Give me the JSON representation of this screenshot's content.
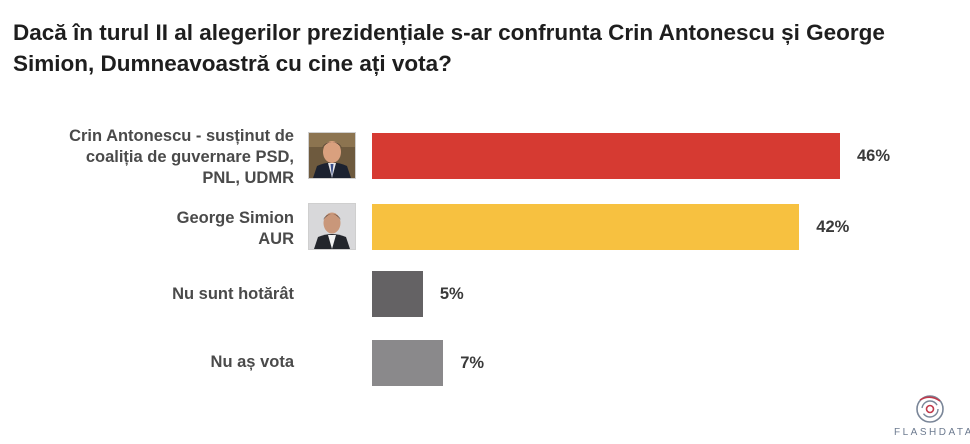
{
  "title": "Dacă în turul II al alegerilor prezidențiale s-ar confrunta Crin Antonescu și George Simion, Dumneavoastră cu cine ați vota?",
  "chart_data": {
    "type": "bar",
    "orientation": "horizontal",
    "title": "Dacă în turul II al alegerilor prezidențiale s-ar confrunta Crin Antonescu și George Simion, Dumneavoastră cu cine ați vota?",
    "categories": [
      "Crin Antonescu - susținut de coaliția de guvernare PSD, PNL, UDMR",
      "George Simion AUR",
      "Nu sunt hotărât",
      "Nu aș vota"
    ],
    "values": [
      46,
      42,
      5,
      7
    ],
    "value_labels": [
      "46%",
      "42%",
      "5%",
      "7%"
    ],
    "colors": [
      "#d63a32",
      "#f7c140",
      "#646264",
      "#8a898b"
    ],
    "xlim": [
      0,
      100
    ],
    "grid": false,
    "legend": "none"
  },
  "labels": {
    "antonescu_line1": "Crin Antonescu - susținut de",
    "antonescu_line2": "coaliția de guvernare PSD,",
    "antonescu_line3": "PNL, UDMR",
    "simion_line1": "George Simion",
    "simion_line2": "AUR",
    "undecided": "Nu sunt hotărât",
    "no_vote": "Nu aș vota"
  },
  "brand": {
    "name": "FLASHDATA",
    "color": "#6c7a8f"
  }
}
